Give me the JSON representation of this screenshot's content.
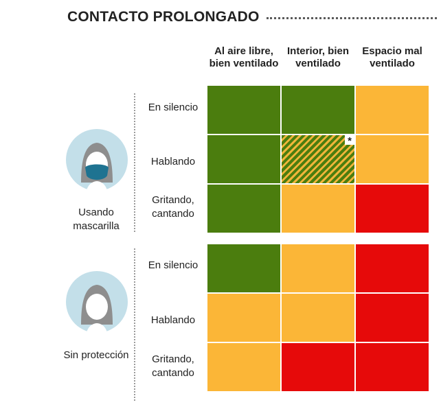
{
  "title": "CONTACTO PROLONGADO",
  "colors": {
    "green": "#4b7d0e",
    "orange": "#fbb637",
    "red": "#e60a0a"
  },
  "columns": [
    "Al aire libre, bien ventilado",
    "Interior, bien ventilado",
    "Espacio mal ventilado"
  ],
  "groups": [
    {
      "label": "Usando mascarilla",
      "icon": "person-with-mask-icon",
      "rows": [
        {
          "label": "En silencio",
          "cells": [
            "green",
            "green",
            "orange"
          ]
        },
        {
          "label": "Hablando",
          "cells": [
            "green",
            "green-orange-hatched",
            "orange"
          ],
          "note_mark": "*"
        },
        {
          "label": "Gritando, cantando",
          "cells": [
            "green",
            "orange",
            "red"
          ]
        }
      ]
    },
    {
      "label": "Sin protección",
      "icon": "person-without-mask-icon",
      "rows": [
        {
          "label": "En silencio",
          "cells": [
            "green",
            "orange",
            "red"
          ]
        },
        {
          "label": "Hablando",
          "cells": [
            "orange",
            "orange",
            "red"
          ]
        },
        {
          "label": "Gritando, cantando",
          "cells": [
            "orange",
            "red",
            "red"
          ]
        }
      ]
    }
  ]
}
